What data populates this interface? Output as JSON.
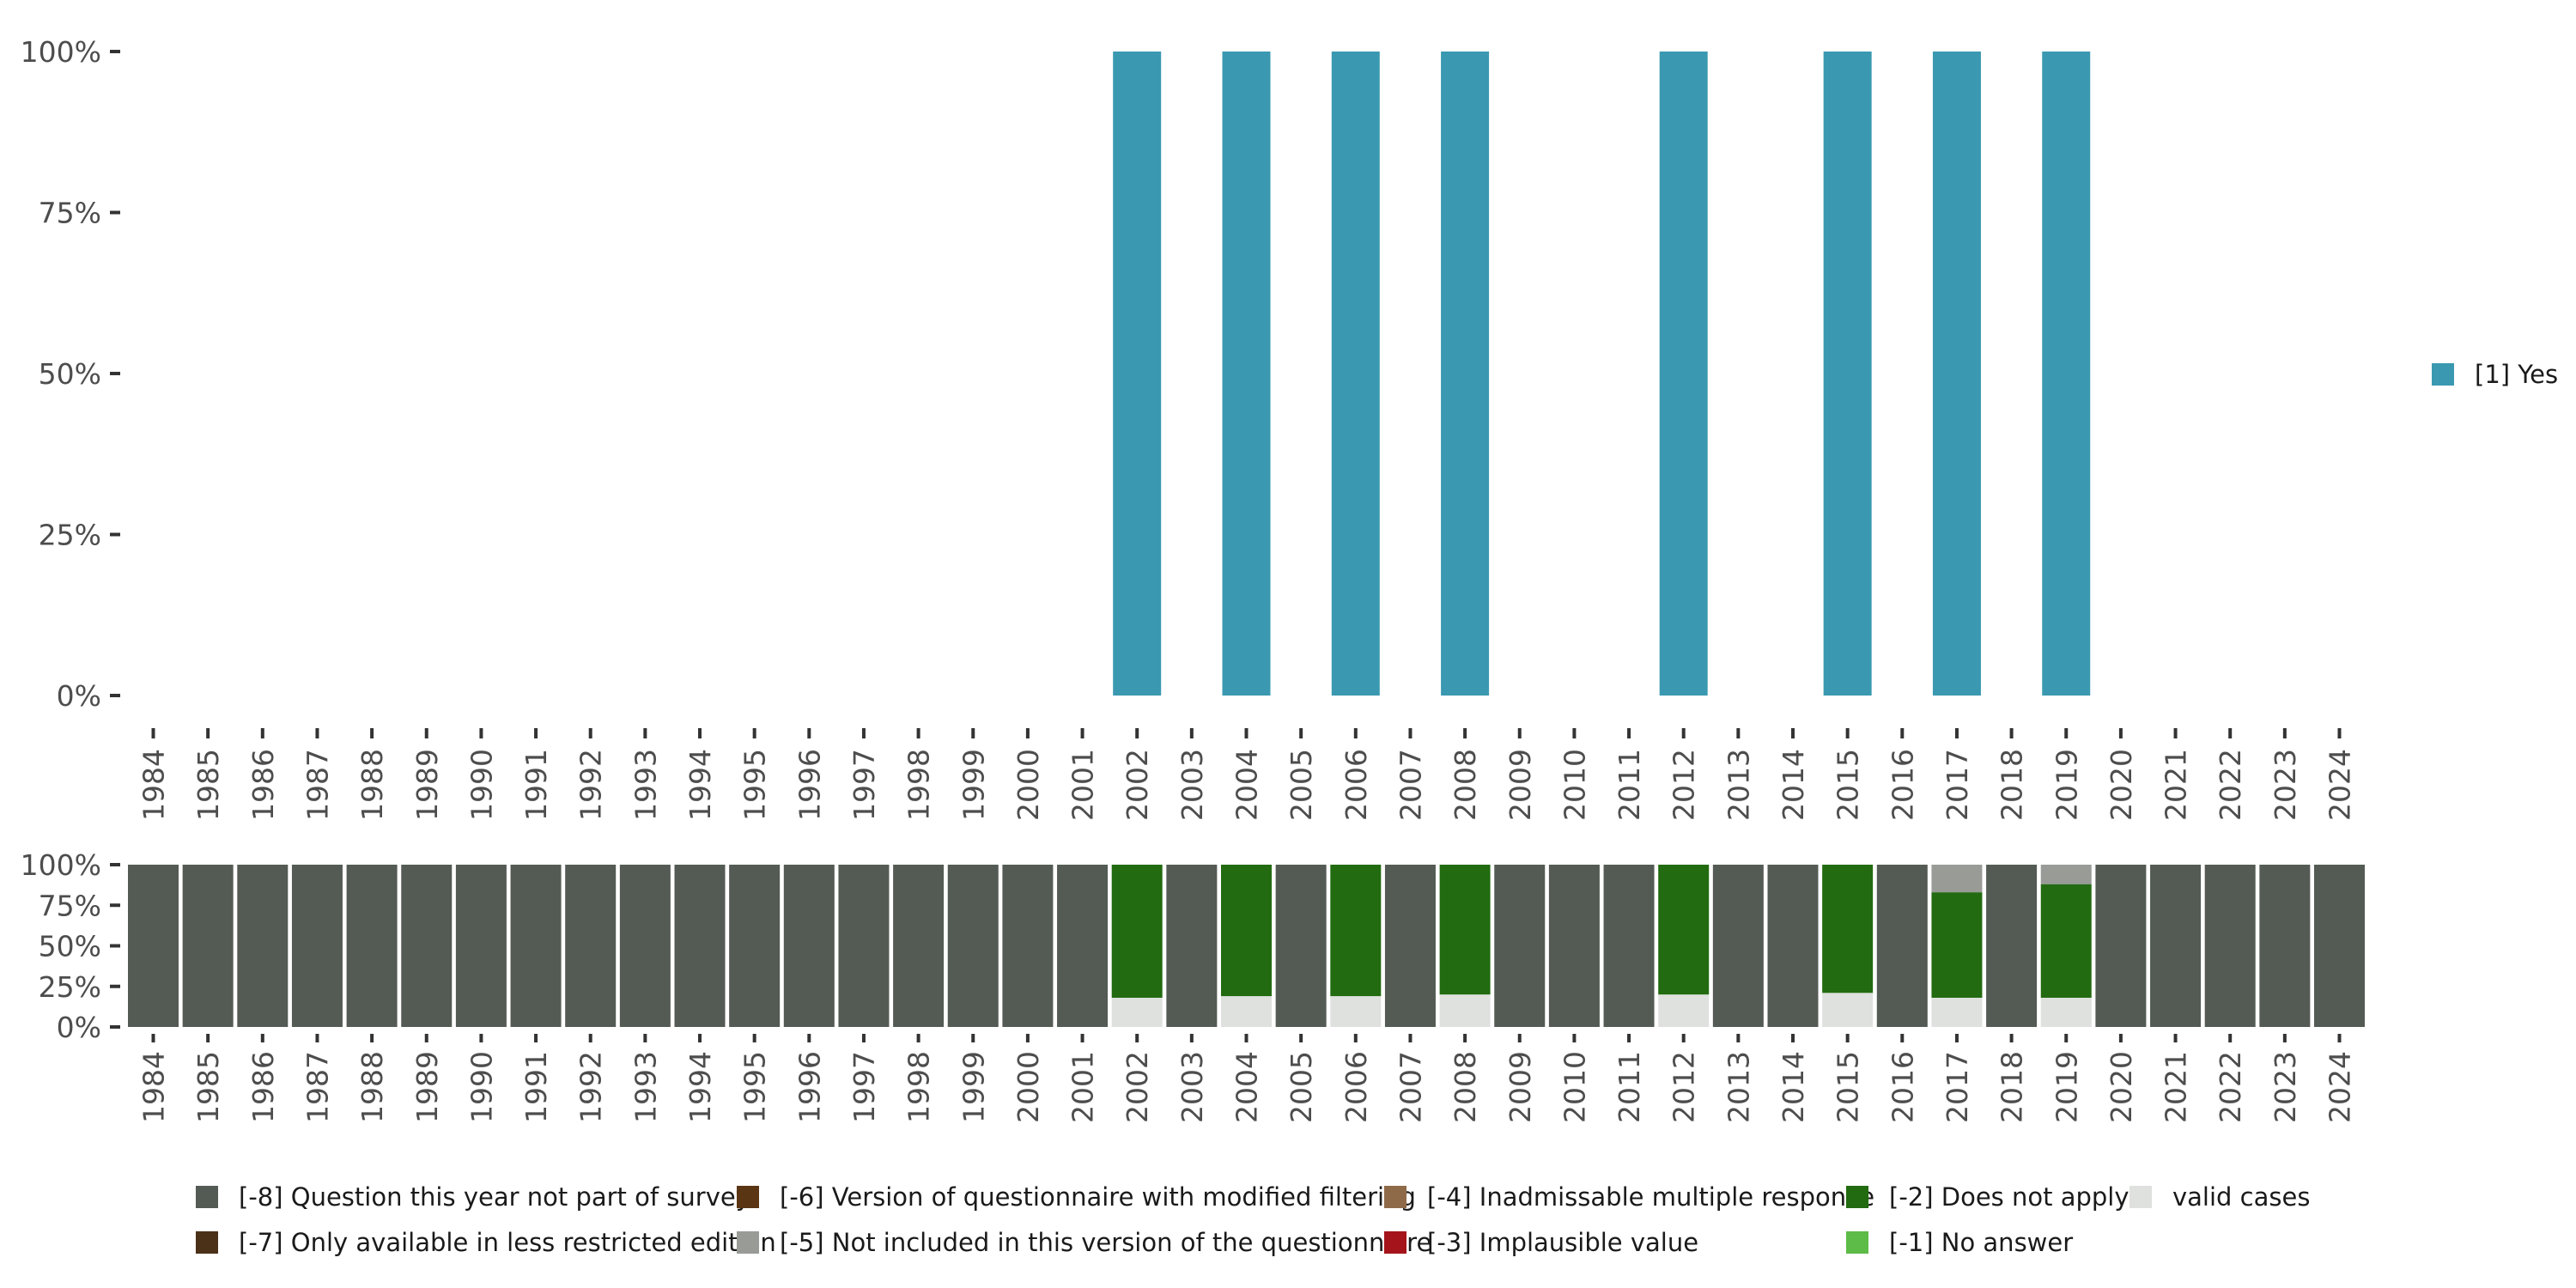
{
  "chart_data": [
    {
      "type": "bar",
      "title": "",
      "xlabel": "",
      "ylabel": "",
      "ylim": [
        0,
        100
      ],
      "y_ticks": [
        "0%",
        "25%",
        "50%",
        "75%",
        "100%"
      ],
      "categories": [
        "1984",
        "1985",
        "1986",
        "1987",
        "1988",
        "1989",
        "1990",
        "1991",
        "1992",
        "1993",
        "1994",
        "1995",
        "1996",
        "1997",
        "1998",
        "1999",
        "2000",
        "2001",
        "2002",
        "2003",
        "2004",
        "2005",
        "2006",
        "2007",
        "2008",
        "2009",
        "2010",
        "2011",
        "2012",
        "2013",
        "2014",
        "2015",
        "2016",
        "2017",
        "2018",
        "2019",
        "2020",
        "2021",
        "2022",
        "2023",
        "2024"
      ],
      "series": [
        {
          "name": "[1] Yes",
          "color": "#3a99b1",
          "values": {
            "2002": 100,
            "2004": 100,
            "2006": 100,
            "2008": 100,
            "2012": 100,
            "2015": 100,
            "2017": 100,
            "2019": 100
          }
        }
      ],
      "legend": {
        "position": "right",
        "entries": [
          {
            "label": "[1] Yes",
            "color": "#3a99b1"
          }
        ]
      }
    },
    {
      "type": "bar",
      "stacked": true,
      "title": "",
      "ylim": [
        0,
        100
      ],
      "y_ticks": [
        "0%",
        "25%",
        "50%",
        "75%",
        "100%"
      ],
      "categories": [
        "1984",
        "1985",
        "1986",
        "1987",
        "1988",
        "1989",
        "1990",
        "1991",
        "1992",
        "1993",
        "1994",
        "1995",
        "1996",
        "1997",
        "1998",
        "1999",
        "2000",
        "2001",
        "2002",
        "2003",
        "2004",
        "2005",
        "2006",
        "2007",
        "2008",
        "2009",
        "2010",
        "2011",
        "2012",
        "2013",
        "2014",
        "2015",
        "2016",
        "2017",
        "2018",
        "2019",
        "2020",
        "2021",
        "2022",
        "2023",
        "2024"
      ],
      "series": [
        {
          "name": "valid cases",
          "color": "#dfe1de",
          "values": {
            "2002": 18,
            "2004": 19,
            "2006": 19,
            "2008": 20,
            "2012": 20,
            "2015": 21,
            "2017": 18,
            "2019": 18
          }
        },
        {
          "name": "[-2] Does not apply",
          "color": "#226b10",
          "values": {
            "2002": 82,
            "2004": 81,
            "2006": 81,
            "2008": 80,
            "2012": 80,
            "2015": 79,
            "2017": 65,
            "2019": 70
          }
        },
        {
          "name": "[-5] Not included in this version of the questionnaire",
          "color": "#989b96",
          "values": {
            "2017": 17,
            "2019": 12
          }
        },
        {
          "name": "[-8] Question this year not part of survey",
          "color": "#545a54",
          "values": {
            "1984": 100,
            "1985": 100,
            "1986": 100,
            "1987": 100,
            "1988": 100,
            "1989": 100,
            "1990": 100,
            "1991": 100,
            "1992": 100,
            "1993": 100,
            "1994": 100,
            "1995": 100,
            "1996": 100,
            "1997": 100,
            "1998": 100,
            "1999": 100,
            "2000": 100,
            "2001": 100,
            "2003": 100,
            "2005": 100,
            "2007": 100,
            "2009": 100,
            "2010": 100,
            "2011": 100,
            "2013": 100,
            "2014": 100,
            "2016": 100,
            "2018": 100,
            "2020": 100,
            "2021": 100,
            "2022": 100,
            "2023": 100,
            "2024": 100
          }
        }
      ],
      "legend": {
        "position": "bottom",
        "entries": [
          {
            "label": "[-8] Question this year not part of survey",
            "color": "#545a54"
          },
          {
            "label": "[-7] Only available in less restricted edition",
            "color": "#4a3118"
          },
          {
            "label": "[-6] Version of questionnaire with modified filtering",
            "color": "#5a3514"
          },
          {
            "label": "[-5] Not included in this version of the questionnaire",
            "color": "#989b96"
          },
          {
            "label": "[-4] Inadmissable multiple response",
            "color": "#8f6a48"
          },
          {
            "label": "[-3] Implausible value",
            "color": "#a4141a"
          },
          {
            "label": "[-2] Does not apply",
            "color": "#226b10"
          },
          {
            "label": "[-1] No answer",
            "color": "#5dbb48"
          },
          {
            "label": "valid cases",
            "color": "#dfe1de"
          }
        ]
      }
    }
  ]
}
